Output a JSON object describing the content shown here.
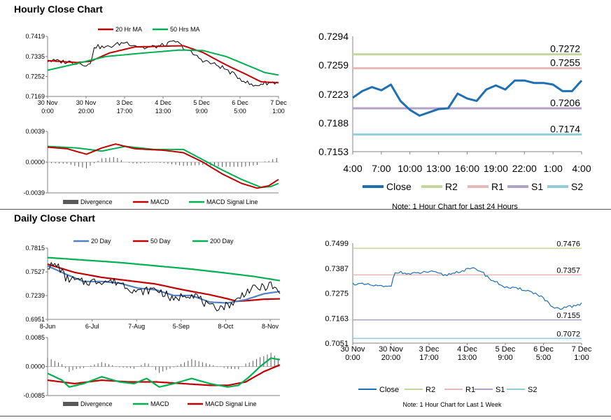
{
  "sections": {
    "hourly_title": "Hourly Close Chart",
    "daily_title": "Daily Close Chart"
  },
  "colors": {
    "red": "#c00000",
    "green": "#00b050",
    "blue": "#4f81bd",
    "close_blue": "#1f6fb3",
    "r2": "#c3d69b",
    "r1": "#e6b9b8",
    "s1": "#b3a2c7",
    "s2": "#93cddd",
    "black": "#000000",
    "grey": "#7f7f7f"
  },
  "chart_data": [
    {
      "id": "hourly_ma",
      "type": "line",
      "title": "",
      "legend": [
        "20 Hr MA",
        "50 Hrs MA"
      ],
      "ylim": [
        0.7169,
        0.7419
      ],
      "yticks": [
        "0.7419",
        "0.7335",
        "0.7252",
        "0.7169"
      ],
      "ytick_values": [
        0.7419,
        0.7335,
        0.7252,
        0.7169
      ],
      "xticks": [
        [
          "30 Nov",
          "0:00"
        ],
        [
          "30 Nov",
          "20:00"
        ],
        [
          "3 Dec",
          "17:00"
        ],
        [
          "4 Dec",
          "13:00"
        ],
        [
          "5 Dec",
          "9:00"
        ],
        [
          "6 Dec",
          "5:00"
        ],
        [
          "7 Dec",
          "1:00"
        ]
      ],
      "n_points": 120,
      "series": [
        {
          "name": "Close",
          "color": "#000000",
          "keys": [
            [
              0,
              0.7318
            ],
            [
              12,
              0.7312
            ],
            [
              22,
              0.73
            ],
            [
              24,
              0.7378
            ],
            [
              30,
              0.7372
            ],
            [
              40,
              0.7395
            ],
            [
              50,
              0.737
            ],
            [
              60,
              0.7382
            ],
            [
              66,
              0.7398
            ],
            [
              72,
              0.736
            ],
            [
              80,
              0.732
            ],
            [
              90,
              0.729
            ],
            [
              100,
              0.724
            ],
            [
              106,
              0.7212
            ],
            [
              112,
              0.7225
            ],
            [
              119,
              0.7228
            ]
          ]
        },
        {
          "name": "20 Hr MA",
          "color": "#c00000",
          "keys": [
            [
              0,
              0.7318
            ],
            [
              15,
              0.731
            ],
            [
              22,
              0.7315
            ],
            [
              32,
              0.735
            ],
            [
              45,
              0.7375
            ],
            [
              60,
              0.7378
            ],
            [
              70,
              0.738
            ],
            [
              80,
              0.7352
            ],
            [
              92,
              0.73
            ],
            [
              102,
              0.7262
            ],
            [
              110,
              0.723
            ],
            [
              119,
              0.7226
            ]
          ]
        },
        {
          "name": "50 Hrs MA",
          "color": "#00b050",
          "keys": [
            [
              0,
              0.7278
            ],
            [
              12,
              0.73
            ],
            [
              30,
              0.7335
            ],
            [
              50,
              0.735
            ],
            [
              68,
              0.7362
            ],
            [
              80,
              0.736
            ],
            [
              92,
              0.7335
            ],
            [
              104,
              0.7295
            ],
            [
              112,
              0.7268
            ],
            [
              119,
              0.7258
            ]
          ]
        }
      ]
    },
    {
      "id": "hourly_macd",
      "type": "line",
      "legend": [
        "Divergence",
        "MACD",
        "MACD Signal Line"
      ],
      "ylim": [
        -0.0039,
        0.0039
      ],
      "yticks": [
        "0.0039",
        "0.0000",
        "-0.0039"
      ],
      "ytick_values": [
        0.0039,
        0.0,
        -0.0039
      ],
      "n_points": 120,
      "series": [
        {
          "name": "MACD",
          "color": "#c00000",
          "keys": [
            [
              0,
              0.0019
            ],
            [
              10,
              0.0017
            ],
            [
              20,
              0.001
            ],
            [
              28,
              0.0018
            ],
            [
              35,
              0.0023
            ],
            [
              45,
              0.0017
            ],
            [
              60,
              0.0015
            ],
            [
              70,
              0.0012
            ],
            [
              80,
              0.0
            ],
            [
              90,
              -0.0015
            ],
            [
              100,
              -0.0027
            ],
            [
              108,
              -0.0033
            ],
            [
              114,
              -0.003
            ],
            [
              119,
              -0.0022
            ]
          ]
        },
        {
          "name": "MACD Signal Line",
          "color": "#00b050",
          "keys": [
            [
              0,
              0.002
            ],
            [
              15,
              0.0018
            ],
            [
              28,
              0.0014
            ],
            [
              40,
              0.002
            ],
            [
              55,
              0.0016
            ],
            [
              70,
              0.0016
            ],
            [
              80,
              0.0003
            ],
            [
              90,
              -0.001
            ],
            [
              100,
              -0.0022
            ],
            [
              110,
              -0.0032
            ],
            [
              115,
              -0.0031
            ],
            [
              119,
              -0.0027
            ]
          ]
        }
      ]
    },
    {
      "id": "hourly_close_levels",
      "type": "line",
      "ylim": [
        0.7153,
        0.7294
      ],
      "yticks": [
        "0.7294",
        "0.7259",
        "0.7223",
        "0.7188",
        "0.7153"
      ],
      "ytick_values": [
        0.7294,
        0.7259,
        0.7223,
        0.7188,
        0.7153
      ],
      "xticks": [
        "4:00",
        "7:00",
        "10:00",
        "13:00",
        "16:00",
        "19:00",
        "22:00",
        "1:00",
        "4:00"
      ],
      "legend": [
        "Close",
        "R2",
        "R1",
        "S1",
        "S2"
      ],
      "note": "Note: 1 Hour Chart for Last 24 Hours",
      "levels": [
        {
          "name": "R2",
          "value": 0.7272,
          "label": "0.7272",
          "color": "#c3d69b"
        },
        {
          "name": "R1",
          "value": 0.7255,
          "label": "0.7255",
          "color": "#e6b9b8"
        },
        {
          "name": "S1",
          "value": 0.7206,
          "label": "0.7206",
          "color": "#b3a2c7"
        },
        {
          "name": "S2",
          "value": 0.7174,
          "label": "0.7174",
          "color": "#93cddd"
        }
      ],
      "close": [
        0.7219,
        0.7227,
        0.7232,
        0.7228,
        0.7235,
        0.7215,
        0.7204,
        0.7197,
        0.7201,
        0.7205,
        0.7206,
        0.7224,
        0.7218,
        0.7215,
        0.7229,
        0.7234,
        0.7229,
        0.724,
        0.724,
        0.7237,
        0.7237,
        0.7235,
        0.7227,
        0.7227,
        0.724
      ]
    },
    {
      "id": "daily_ma",
      "type": "line",
      "legend": [
        "20 Day",
        "50 Day",
        "200 Day"
      ],
      "ylim": [
        0.6951,
        0.7815
      ],
      "yticks": [
        "0.7815",
        "0.7527",
        "0.7239",
        "0.6951"
      ],
      "ytick_values": [
        0.7815,
        0.7527,
        0.7239,
        0.6951
      ],
      "xticks": [
        "8-Jun",
        "6-Jul",
        "7-Aug",
        "5-Sep",
        "8-Oct",
        "8-Nov"
      ],
      "n_points": 130,
      "series": [
        {
          "name": "Close",
          "color": "#000000",
          "keys": [
            [
              0,
              0.76
            ],
            [
              6,
              0.76
            ],
            [
              10,
              0.745
            ],
            [
              20,
              0.74
            ],
            [
              30,
              0.742
            ],
            [
              40,
              0.74
            ],
            [
              50,
              0.728
            ],
            [
              60,
              0.732
            ],
            [
              66,
              0.725
            ],
            [
              70,
              0.717
            ],
            [
              76,
              0.726
            ],
            [
              82,
              0.725
            ],
            [
              90,
              0.709
            ],
            [
              98,
              0.711
            ],
            [
              104,
              0.716
            ],
            [
              110,
              0.729
            ],
            [
              116,
              0.733
            ],
            [
              120,
              0.734
            ],
            [
              124,
              0.737
            ],
            [
              127,
              0.73
            ],
            [
              129,
              0.725
            ]
          ]
        },
        {
          "name": "20 Day",
          "color": "#4f81bd",
          "keys": [
            [
              0,
              0.76
            ],
            [
              10,
              0.75
            ],
            [
              20,
              0.741
            ],
            [
              30,
              0.741
            ],
            [
              40,
              0.739
            ],
            [
              50,
              0.733
            ],
            [
              60,
              0.731
            ],
            [
              70,
              0.724
            ],
            [
              80,
              0.724
            ],
            [
              90,
              0.716
            ],
            [
              100,
              0.715
            ],
            [
              110,
              0.719
            ],
            [
              120,
              0.726
            ],
            [
              129,
              0.729
            ]
          ]
        },
        {
          "name": "50 Day",
          "color": "#c00000",
          "keys": [
            [
              0,
              0.762
            ],
            [
              15,
              0.752
            ],
            [
              30,
              0.746
            ],
            [
              45,
              0.742
            ],
            [
              60,
              0.738
            ],
            [
              75,
              0.731
            ],
            [
              90,
              0.725
            ],
            [
              100,
              0.72
            ],
            [
              105,
              0.717
            ],
            [
              112,
              0.718
            ],
            [
              120,
              0.7195
            ],
            [
              129,
              0.72
            ]
          ]
        },
        {
          "name": "200 Day",
          "color": "#00b050",
          "keys": [
            [
              0,
              0.77
            ],
            [
              20,
              0.767
            ],
            [
              40,
              0.764
            ],
            [
              60,
              0.76
            ],
            [
              80,
              0.756
            ],
            [
              100,
              0.751
            ],
            [
              115,
              0.747
            ],
            [
              129,
              0.742
            ]
          ]
        }
      ]
    },
    {
      "id": "daily_macd",
      "type": "line",
      "legend": [
        "Divergence",
        "MACD",
        "MACD Signal Line"
      ],
      "ylim": [
        -0.0085,
        0.0085
      ],
      "yticks": [
        "0.0085",
        "0.0000",
        "-0.0085"
      ],
      "ytick_values": [
        0.0085,
        0.0,
        -0.0085
      ],
      "n_points": 130,
      "series": [
        {
          "name": "MACD",
          "color": "#00b050",
          "keys": [
            [
              0,
              -0.002
            ],
            [
              8,
              -0.004
            ],
            [
              12,
              -0.006
            ],
            [
              20,
              -0.005
            ],
            [
              30,
              -0.003
            ],
            [
              40,
              -0.0045
            ],
            [
              48,
              -0.005
            ],
            [
              55,
              -0.0035
            ],
            [
              62,
              -0.006
            ],
            [
              70,
              -0.005
            ],
            [
              80,
              -0.0035
            ],
            [
              90,
              -0.005
            ],
            [
              100,
              -0.006
            ],
            [
              106,
              -0.0055
            ],
            [
              112,
              -0.003
            ],
            [
              118,
              0.0
            ],
            [
              124,
              0.0025
            ],
            [
              129,
              0.002
            ]
          ]
        },
        {
          "name": "MACD Signal Line",
          "color": "#c00000",
          "keys": [
            [
              0,
              -0.004
            ],
            [
              15,
              -0.005
            ],
            [
              30,
              -0.004
            ],
            [
              45,
              -0.0045
            ],
            [
              60,
              -0.0045
            ],
            [
              75,
              -0.005
            ],
            [
              90,
              -0.0055
            ],
            [
              100,
              -0.0055
            ],
            [
              110,
              -0.0045
            ],
            [
              120,
              -0.0015
            ],
            [
              129,
              0.0005
            ]
          ]
        }
      ]
    },
    {
      "id": "daily_close_levels",
      "type": "line",
      "ylim": [
        0.7051,
        0.7499
      ],
      "yticks": [
        "0.7499",
        "0.7387",
        "0.7275",
        "0.7163",
        "0.7051"
      ],
      "ytick_values": [
        0.7499,
        0.7387,
        0.7275,
        0.7163,
        0.7051
      ],
      "xticks": [
        [
          "30 Nov",
          "0:00"
        ],
        [
          "30 Nov",
          "20:00"
        ],
        [
          "3 Dec",
          "17:00"
        ],
        [
          "4 Dec",
          "13:00"
        ],
        [
          "5 Dec",
          "9:00"
        ],
        [
          "6 Dec",
          "5:00"
        ],
        [
          "7 Dec",
          "1:00"
        ]
      ],
      "legend": [
        "Close",
        "R2",
        "R1",
        "S1",
        "S2"
      ],
      "note": "Note: 1 Hour Chart for Last 1 Week",
      "n_points": 120,
      "levels": [
        {
          "name": "R2",
          "value": 0.7476,
          "label": "0.7476",
          "color": "#c3d69b"
        },
        {
          "name": "R1",
          "value": 0.7357,
          "label": "0.7357",
          "color": "#e6b9b8"
        },
        {
          "name": "S1",
          "value": 0.7155,
          "label": "0.7155",
          "color": "#b3a2c7"
        },
        {
          "name": "S2",
          "value": 0.7072,
          "label": "0.7072",
          "color": "#93cddd"
        }
      ],
      "series": [
        {
          "name": "Close",
          "color": "#1f6fb3",
          "keys": [
            [
              0,
              0.7318
            ],
            [
              8,
              0.7312
            ],
            [
              18,
              0.7302
            ],
            [
              20,
              0.731
            ],
            [
              22,
              0.7372
            ],
            [
              30,
              0.736
            ],
            [
              40,
              0.7372
            ],
            [
              48,
              0.7355
            ],
            [
              55,
              0.7372
            ],
            [
              62,
              0.7385
            ],
            [
              66,
              0.7378
            ],
            [
              72,
              0.7335
            ],
            [
              80,
              0.73
            ],
            [
              90,
              0.729
            ],
            [
              98,
              0.7262
            ],
            [
              104,
              0.721
            ],
            [
              108,
              0.72
            ],
            [
              112,
              0.7218
            ],
            [
              116,
              0.7215
            ],
            [
              119,
              0.723
            ]
          ]
        }
      ]
    }
  ]
}
